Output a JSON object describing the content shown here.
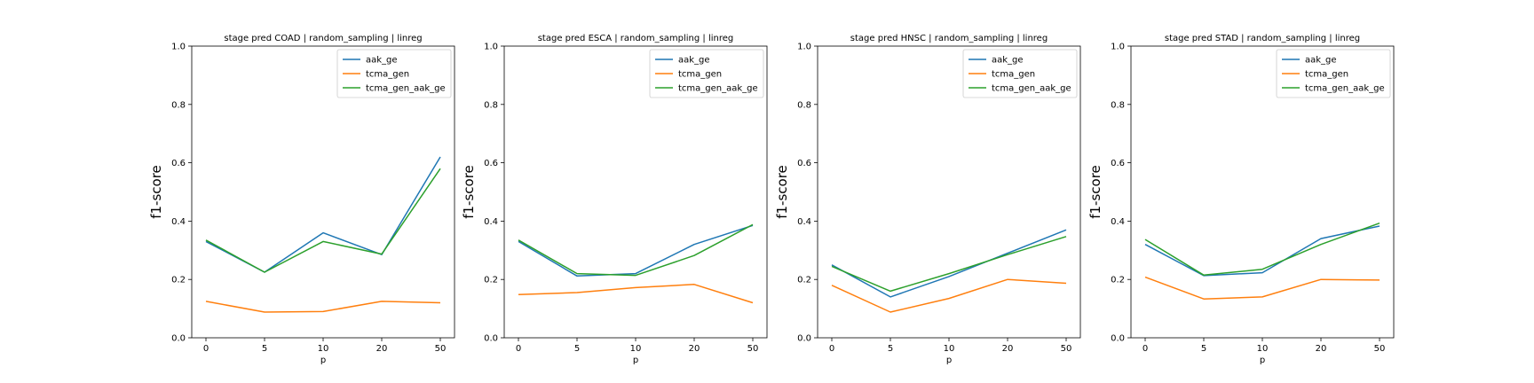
{
  "chart_data": [
    {
      "type": "line",
      "title": "stage pred COAD | random_sampling | linreg",
      "xlabel": "p",
      "ylabel": "f1-score",
      "categories": [
        "0",
        "5",
        "10",
        "20",
        "50"
      ],
      "ylim": [
        0,
        1
      ],
      "yticks": [
        "0.0",
        "0.2",
        "0.4",
        "0.6",
        "0.8",
        "1.0"
      ],
      "legend_position": "upper right",
      "grid": false,
      "series": [
        {
          "name": "aak_ge",
          "color": "#1f77b4",
          "values": [
            0.33,
            0.225,
            0.36,
            0.285,
            0.62
          ]
        },
        {
          "name": "tcma_gen",
          "color": "#ff7f0e",
          "values": [
            0.125,
            0.088,
            0.09,
            0.125,
            0.12
          ]
        },
        {
          "name": "tcma_gen_aak_ge",
          "color": "#2ca02c",
          "values": [
            0.335,
            0.225,
            0.33,
            0.287,
            0.58
          ]
        }
      ]
    },
    {
      "type": "line",
      "title": "stage pred ESCA | random_sampling | linreg",
      "xlabel": "p",
      "ylabel": "f1-score",
      "categories": [
        "0",
        "5",
        "10",
        "20",
        "50"
      ],
      "ylim": [
        0,
        1
      ],
      "yticks": [
        "0.0",
        "0.2",
        "0.4",
        "0.6",
        "0.8",
        "1.0"
      ],
      "legend_position": "upper right",
      "grid": false,
      "series": [
        {
          "name": "aak_ge",
          "color": "#1f77b4",
          "values": [
            0.33,
            0.212,
            0.22,
            0.32,
            0.385
          ]
        },
        {
          "name": "tcma_gen",
          "color": "#ff7f0e",
          "values": [
            0.148,
            0.155,
            0.172,
            0.183,
            0.12
          ]
        },
        {
          "name": "tcma_gen_aak_ge",
          "color": "#2ca02c",
          "values": [
            0.335,
            0.22,
            0.214,
            0.282,
            0.388
          ]
        }
      ]
    },
    {
      "type": "line",
      "title": "stage pred HNSC | random_sampling | linreg",
      "xlabel": "p",
      "ylabel": "f1-score",
      "categories": [
        "0",
        "5",
        "10",
        "20",
        "50"
      ],
      "ylim": [
        0,
        1
      ],
      "yticks": [
        "0.0",
        "0.2",
        "0.4",
        "0.6",
        "0.8",
        "1.0"
      ],
      "legend_position": "upper right",
      "grid": false,
      "series": [
        {
          "name": "aak_ge",
          "color": "#1f77b4",
          "values": [
            0.25,
            0.14,
            0.21,
            0.29,
            0.37
          ]
        },
        {
          "name": "tcma_gen",
          "color": "#ff7f0e",
          "values": [
            0.18,
            0.088,
            0.135,
            0.2,
            0.187
          ]
        },
        {
          "name": "tcma_gen_aak_ge",
          "color": "#2ca02c",
          "values": [
            0.245,
            0.16,
            0.22,
            0.285,
            0.347
          ]
        }
      ]
    },
    {
      "type": "line",
      "title": "stage pred STAD | random_sampling | linreg",
      "xlabel": "p",
      "ylabel": "f1-score",
      "categories": [
        "0",
        "5",
        "10",
        "20",
        "50"
      ],
      "ylim": [
        0,
        1
      ],
      "yticks": [
        "0.0",
        "0.2",
        "0.4",
        "0.6",
        "0.8",
        "1.0"
      ],
      "legend_position": "upper right",
      "grid": false,
      "series": [
        {
          "name": "aak_ge",
          "color": "#1f77b4",
          "values": [
            0.32,
            0.213,
            0.223,
            0.34,
            0.383
          ]
        },
        {
          "name": "tcma_gen",
          "color": "#ff7f0e",
          "values": [
            0.208,
            0.133,
            0.14,
            0.2,
            0.198
          ]
        },
        {
          "name": "tcma_gen_aak_ge",
          "color": "#2ca02c",
          "values": [
            0.337,
            0.215,
            0.235,
            0.32,
            0.393
          ]
        }
      ]
    }
  ]
}
